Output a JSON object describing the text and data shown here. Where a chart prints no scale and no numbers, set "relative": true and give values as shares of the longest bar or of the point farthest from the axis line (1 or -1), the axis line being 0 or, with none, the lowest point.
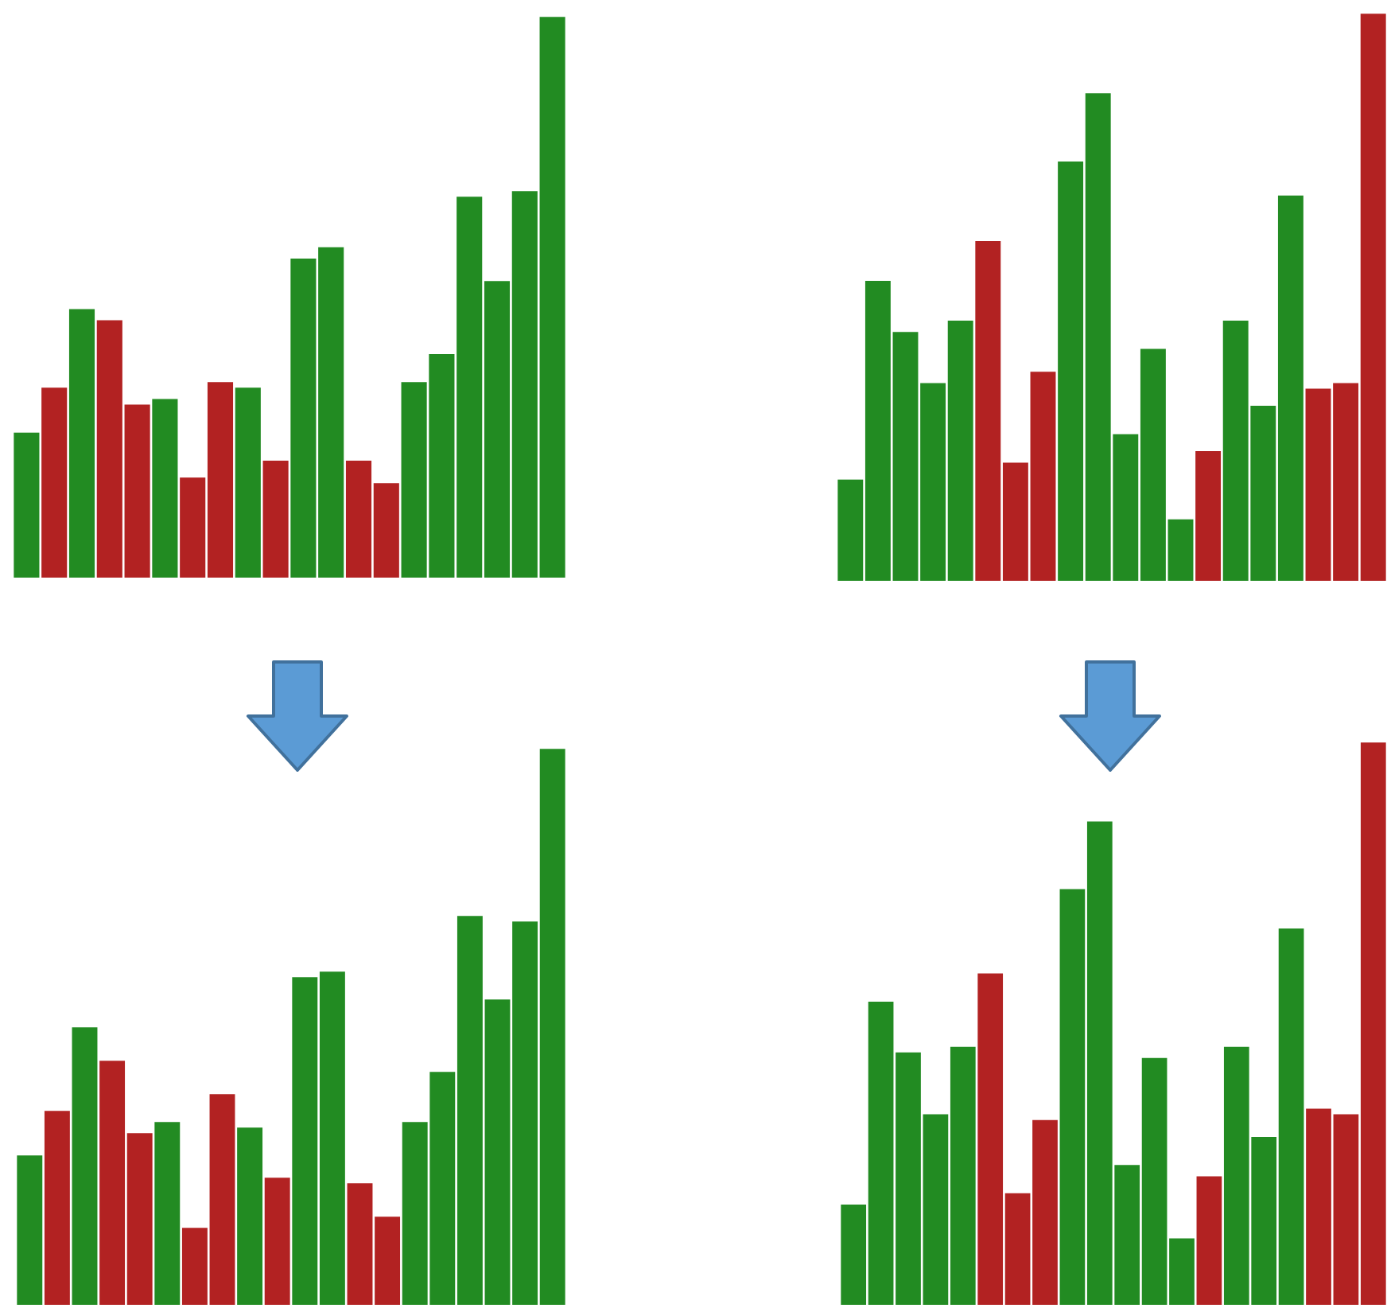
{
  "chart_data": [
    {
      "type": "bar",
      "relative": true,
      "categories": [
        null,
        null,
        null,
        null,
        null,
        null,
        null,
        null,
        null,
        null,
        null,
        null,
        null,
        null,
        null,
        null,
        null,
        null,
        null,
        null
      ],
      "values": [
        0.26,
        0.34,
        0.48,
        0.46,
        0.31,
        0.32,
        0.18,
        0.35,
        0.34,
        0.21,
        0.57,
        0.59,
        0.21,
        0.17,
        0.35,
        0.4,
        0.68,
        0.53,
        0.69,
        1
      ],
      "colors": [
        "#228b22",
        "#b22222",
        "#228b22",
        "#b22222",
        "#b22222",
        "#228b22",
        "#b22222",
        "#b22222",
        "#228b22",
        "#b22222",
        "#228b22",
        "#228b22",
        "#b22222",
        "#b22222",
        "#228b22",
        "#228b22",
        "#228b22",
        "#228b22",
        "#228b22",
        "#228b22"
      ]
    },
    {
      "type": "bar",
      "relative": true,
      "categories": [
        null,
        null,
        null,
        null,
        null,
        null,
        null,
        null,
        null,
        null,
        null,
        null,
        null,
        null,
        null,
        null,
        null,
        null,
        null,
        null
      ],
      "values": [
        0.18,
        0.53,
        0.44,
        0.35,
        0.46,
        0.6,
        0.21,
        0.37,
        0.74,
        0.86,
        0.26,
        0.41,
        0.11,
        0.23,
        0.46,
        0.31,
        0.68,
        0.34,
        0.35,
        1
      ],
      "colors": [
        "#228b22",
        "#228b22",
        "#228b22",
        "#228b22",
        "#228b22",
        "#b22222",
        "#b22222",
        "#b22222",
        "#228b22",
        "#228b22",
        "#228b22",
        "#228b22",
        "#228b22",
        "#b22222",
        "#228b22",
        "#228b22",
        "#228b22",
        "#b22222",
        "#b22222",
        "#b22222"
      ]
    },
    {
      "type": "bar",
      "relative": true,
      "categories": [
        null,
        null,
        null,
        null,
        null,
        null,
        null,
        null,
        null,
        null,
        null,
        null,
        null,
        null,
        null,
        null,
        null,
        null,
        null,
        null
      ],
      "values": [
        0.27,
        0.35,
        0.5,
        0.44,
        0.31,
        0.33,
        0.14,
        0.38,
        0.32,
        0.23,
        0.59,
        0.6,
        0.22,
        0.16,
        0.33,
        0.42,
        0.7,
        0.55,
        0.69,
        1
      ],
      "colors": [
        "#228b22",
        "#b22222",
        "#228b22",
        "#b22222",
        "#b22222",
        "#228b22",
        "#b22222",
        "#b22222",
        "#228b22",
        "#b22222",
        "#228b22",
        "#228b22",
        "#b22222",
        "#b22222",
        "#228b22",
        "#228b22",
        "#228b22",
        "#228b22",
        "#228b22",
        "#228b22"
      ]
    },
    {
      "type": "bar",
      "relative": true,
      "categories": [
        null,
        null,
        null,
        null,
        null,
        null,
        null,
        null,
        null,
        null,
        null,
        null,
        null,
        null,
        null,
        null,
        null,
        null,
        null,
        null
      ],
      "values": [
        0.18,
        0.54,
        0.45,
        0.34,
        0.46,
        0.59,
        0.2,
        0.33,
        0.74,
        0.86,
        0.25,
        0.44,
        0.12,
        0.23,
        0.46,
        0.3,
        0.67,
        0.35,
        0.34,
        1
      ],
      "colors": [
        "#228b22",
        "#228b22",
        "#228b22",
        "#228b22",
        "#228b22",
        "#b22222",
        "#b22222",
        "#b22222",
        "#228b22",
        "#228b22",
        "#228b22",
        "#228b22",
        "#228b22",
        "#b22222",
        "#228b22",
        "#228b22",
        "#228b22",
        "#b22222",
        "#b22222",
        "#b22222"
      ]
    }
  ]
}
